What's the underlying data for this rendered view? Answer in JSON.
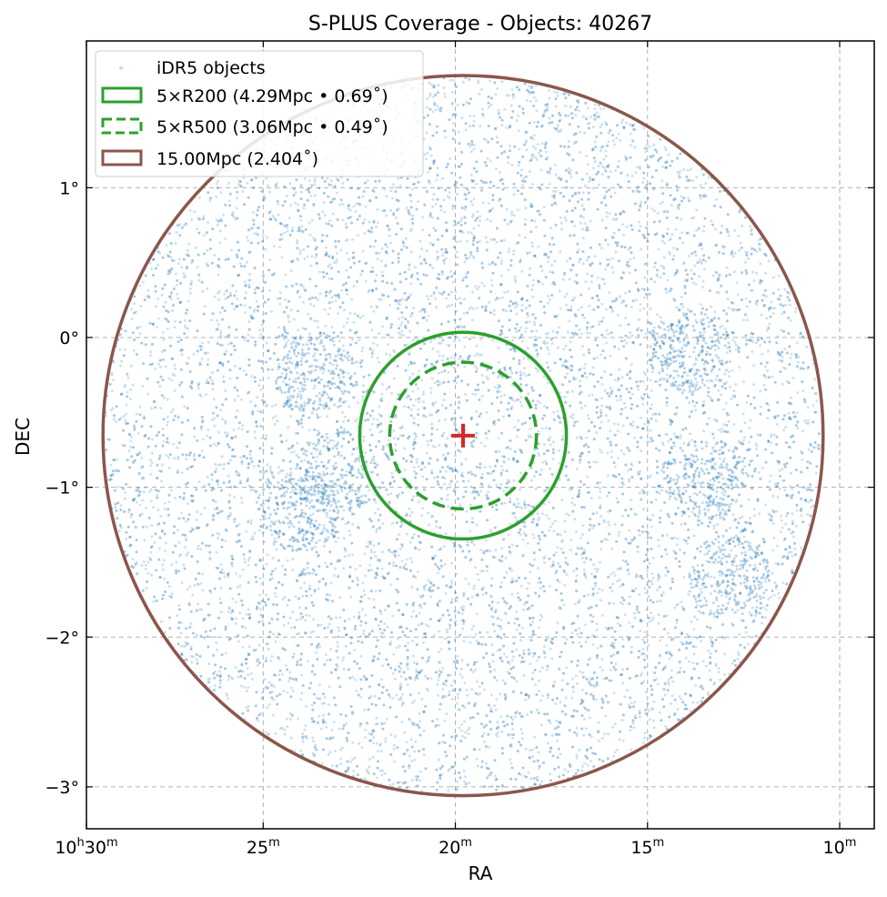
{
  "chart_data": {
    "type": "scatter",
    "title": "S-PLUS Coverage - Objects: 40267",
    "xlabel": "RA",
    "ylabel": "DEC",
    "x_axis": {
      "unit": "RA (time, minutes past 10h)",
      "range_min": [
        29.6,
        9.1
      ],
      "inverted": true,
      "ticks": [
        {
          "value": 29.6,
          "hour": "10",
          "hour_sup": "h",
          "minute": "30",
          "minute_sup": "m"
        },
        {
          "value": 25,
          "minute": "25",
          "minute_sup": "m"
        },
        {
          "value": 20,
          "minute": "20",
          "minute_sup": "m"
        },
        {
          "value": 15,
          "minute": "15",
          "minute_sup": "m"
        },
        {
          "value": 10,
          "minute": "10",
          "minute_sup": "m"
        }
      ]
    },
    "y_axis": {
      "unit": "degrees",
      "range": [
        -3.28,
        1.98
      ],
      "ticks": [
        {
          "value": 1,
          "label": "1°"
        },
        {
          "value": 0,
          "label": "0°"
        },
        {
          "value": -1,
          "label": "−1°"
        },
        {
          "value": -2,
          "label": "−2°"
        },
        {
          "value": -3,
          "label": "−3°"
        }
      ]
    },
    "grid": true,
    "legend_position": "top-left",
    "legend": [
      {
        "label": "iDR5 objects",
        "style": "point"
      },
      {
        "label": "5×R200 (4.29Mpc • 0.69$^\\circ$)",
        "display": "5×R200 (4.29Mpc • 0.69˚)",
        "style": "solid"
      },
      {
        "label": "5×R500 (3.06Mpc • 0.49˚)",
        "style": "dashed"
      },
      {
        "label": "15.00Mpc (2.404˚)",
        "style": "solid-brown"
      }
    ],
    "center": {
      "ra_min": 19.8,
      "dec": -0.655
    },
    "circles": [
      {
        "name": "5×R200 (4.29Mpc • 0.69˚)",
        "radius_deg": 0.69,
        "style": "solid",
        "color": "#2ca02c"
      },
      {
        "name": "5×R500 (3.06Mpc • 0.49˚)",
        "radius_deg": 0.49,
        "style": "dashed",
        "color": "#2ca02c"
      },
      {
        "name": "15.00Mpc (2.404˚)",
        "radius_deg": 2.404,
        "style": "solid",
        "color": "#8c564b"
      }
    ],
    "scatter": {
      "name": "iDR5 objects",
      "count": 40267,
      "color": "#1f77b4",
      "distribution": "uniform within 15.00Mpc circle",
      "overdensities": [
        {
          "ra_min": 12.9,
          "dec": -1.6
        },
        {
          "ra_min": 13.5,
          "dec": -0.95
        },
        {
          "ra_min": 13.9,
          "dec": -0.1
        },
        {
          "ra_min": 23.7,
          "dec": -0.25
        },
        {
          "ra_min": 23.1,
          "dec": -0.9
        },
        {
          "ra_min": 24.1,
          "dec": -1.15
        }
      ]
    },
    "colors": {
      "points": "#1f77b4",
      "r200": "#2ca02c",
      "r500": "#2ca02c",
      "outer": "#8c564b",
      "center_marker": "#d62728",
      "grid": "#b0b0b0"
    }
  }
}
